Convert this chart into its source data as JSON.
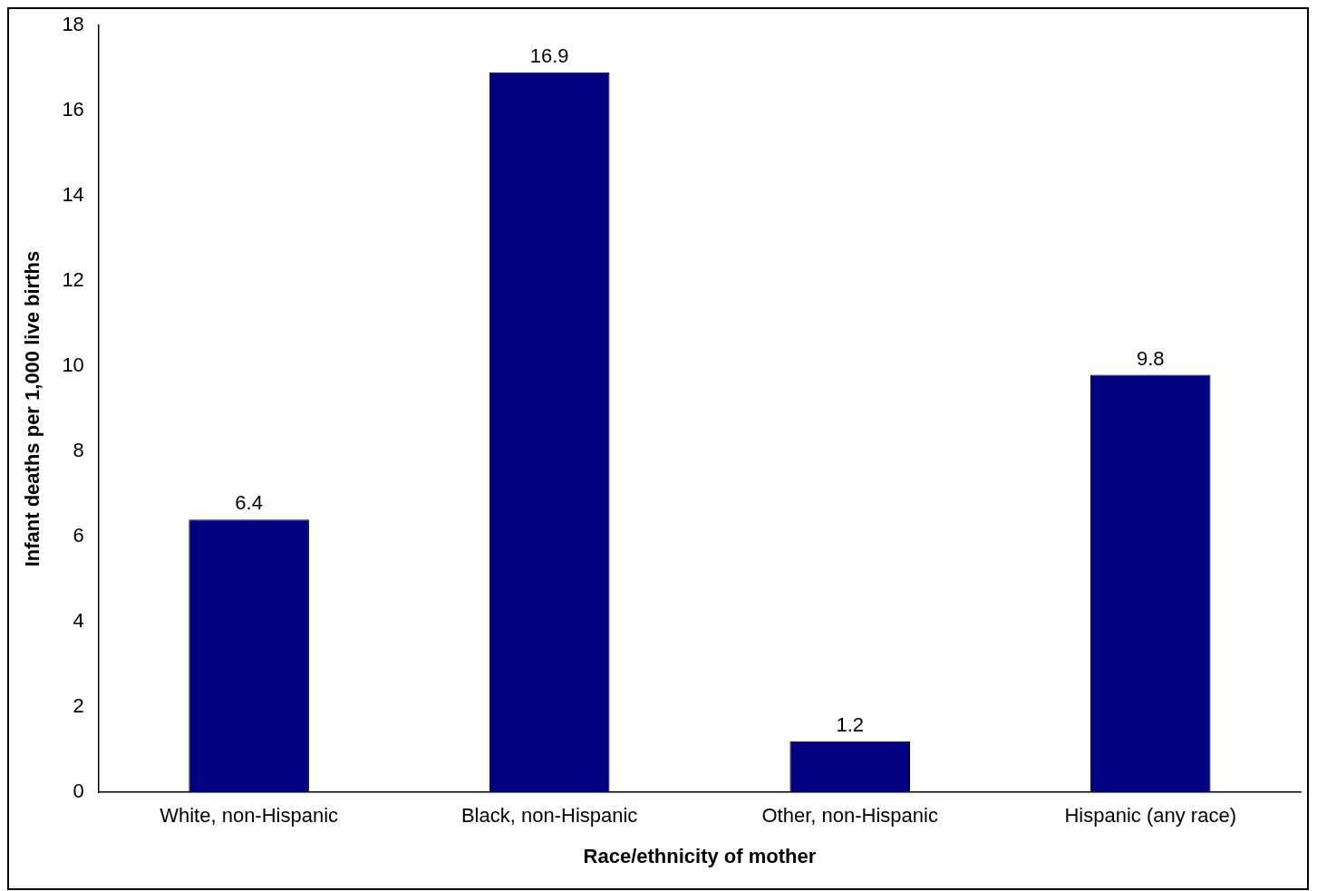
{
  "chart_data": {
    "type": "bar",
    "xlabel": "Race/ethnicity of mother",
    "ylabel": "Infant deaths per 1,000 live births",
    "categories": [
      "White, non-Hispanic",
      "Black, non-Hispanic",
      "Other, non-Hispanic",
      "Hispanic (any race)"
    ],
    "values": [
      6.4,
      16.9,
      1.2,
      9.8
    ],
    "color": "#000080",
    "ylim": [
      0,
      18
    ],
    "yticks": [
      0,
      2,
      4,
      6,
      8,
      10,
      12,
      14,
      16,
      18
    ],
    "grid": false,
    "data_labels": true,
    "legend": false
  }
}
